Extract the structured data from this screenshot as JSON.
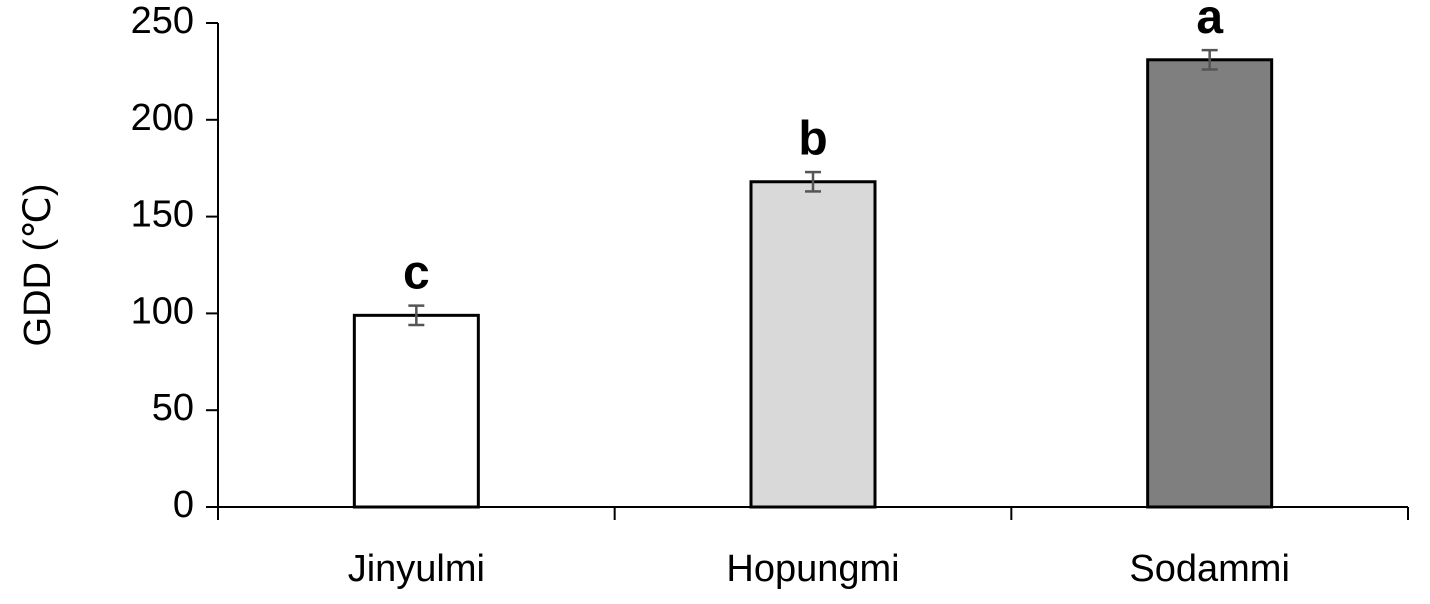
{
  "chart_data": {
    "type": "bar",
    "ylabel": "GDD (℃)",
    "categories": [
      "Jinyulmi",
      "Hopungmi",
      "Sodammi"
    ],
    "values": [
      99,
      168,
      231
    ],
    "errors": [
      5,
      5,
      5
    ],
    "annotations": [
      "c",
      "b",
      "a"
    ],
    "colors": [
      "#ffffff",
      "#d9d9d9",
      "#7f7f7f"
    ],
    "ylim": [
      0,
      250
    ],
    "yticks": [
      0,
      50,
      100,
      150,
      200,
      250
    ],
    "grid": false
  }
}
